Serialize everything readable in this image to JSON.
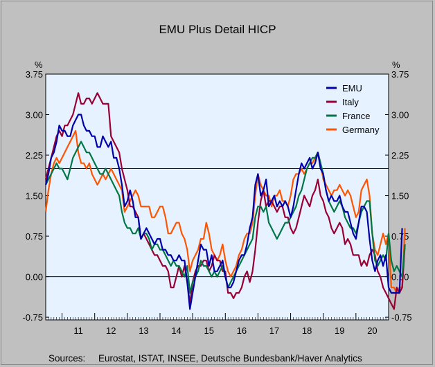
{
  "chart_data": {
    "type": "line",
    "title": "EMU Plus Detail HICP",
    "ylabel_left": "%",
    "ylabel_right": "%",
    "ylim": [
      -0.8,
      3.75
    ],
    "y_ticks": [
      3.75,
      3.0,
      2.25,
      1.5,
      0.75,
      0.0,
      -0.75
    ],
    "y_tick_labels": [
      "3.75",
      "3.00",
      "2.25",
      "1.50",
      "0.75",
      "0.00",
      "-0.75"
    ],
    "x_range": [
      "2010-07",
      "2020-12"
    ],
    "x_ticks": [
      "11",
      "12",
      "13",
      "14",
      "15",
      "16",
      "17",
      "18",
      "19",
      "20"
    ],
    "reference_line": 2.0,
    "zero_line": 0.0,
    "legend_position": "top-right",
    "series": [
      {
        "name": "EMU",
        "color": "#0000aa",
        "values": [
          1.7,
          1.9,
          2.2,
          2.3,
          2.5,
          2.8,
          2.7,
          2.7,
          2.6,
          2.6,
          2.8,
          2.9,
          3.0,
          3.0,
          2.8,
          2.7,
          2.7,
          2.6,
          2.6,
          2.4,
          2.4,
          2.6,
          2.5,
          2.4,
          2.5,
          2.2,
          2.2,
          2.0,
          1.7,
          1.3,
          1.4,
          1.6,
          1.4,
          1.1,
          1.1,
          0.7,
          0.8,
          0.9,
          0.8,
          0.7,
          0.6,
          0.7,
          0.7,
          0.5,
          0.5,
          0.4,
          0.4,
          0.3,
          0.3,
          0.4,
          0.3,
          0.3,
          -0.1,
          -0.6,
          -0.3,
          0.0,
          0.3,
          0.6,
          0.5,
          0.5,
          0.2,
          0.4,
          0.1,
          0.1,
          0.2,
          0.3,
          0.0,
          -0.2,
          -0.2,
          -0.1,
          0.1,
          0.3,
          0.4,
          0.4,
          0.6,
          0.9,
          1.1,
          1.7,
          1.9,
          1.5,
          1.6,
          1.8,
          1.3,
          1.4,
          1.5,
          1.3,
          1.4,
          1.3,
          1.4,
          1.3,
          1.1,
          1.3,
          1.6,
          1.9,
          2.1,
          2.0,
          2.1,
          2.2,
          2.0,
          2.1,
          2.3,
          2.0,
          1.9,
          1.6,
          1.4,
          1.5,
          1.4,
          1.4,
          1.5,
          1.3,
          1.2,
          1.2,
          1.0,
          0.8,
          0.7,
          1.0,
          1.3,
          1.3,
          1.2,
          0.7,
          0.3,
          0.1,
          0.3,
          0.4,
          0.2,
          0.4,
          -0.2,
          -0.3,
          -0.3,
          -0.3,
          -0.3,
          0.9
        ]
      },
      {
        "name": "Italy",
        "color": "#990033",
        "values": [
          1.8,
          2.0,
          2.2,
          2.4,
          2.6,
          2.7,
          2.6,
          2.8,
          2.8,
          2.9,
          3.0,
          3.2,
          3.4,
          3.2,
          3.2,
          3.3,
          3.3,
          3.2,
          3.3,
          3.4,
          3.3,
          3.2,
          3.2,
          3.2,
          2.6,
          2.5,
          2.4,
          2.3,
          2.0,
          1.8,
          1.6,
          1.3,
          1.3,
          1.2,
          1.1,
          0.7,
          0.8,
          0.7,
          0.6,
          0.5,
          0.4,
          0.4,
          0.3,
          0.2,
          0.2,
          0.1,
          -0.2,
          -0.2,
          0.0,
          0.2,
          0.0,
          0.2,
          -0.1,
          -0.5,
          -0.1,
          0.1,
          0.2,
          0.2,
          0.3,
          0.3,
          0.1,
          0.2,
          0.4,
          0.3,
          0.3,
          0.1,
          0.1,
          -0.3,
          -0.3,
          -0.4,
          -0.3,
          -0.3,
          -0.2,
          0.0,
          0.1,
          -0.1,
          0.1,
          0.5,
          1.0,
          1.4,
          1.6,
          1.3,
          1.4,
          1.4,
          1.3,
          1.2,
          1.3,
          1.3,
          1.1,
          1.1,
          0.9,
          0.8,
          0.9,
          1.1,
          1.3,
          1.5,
          1.4,
          1.3,
          1.5,
          1.6,
          1.8,
          1.5,
          1.4,
          1.2,
          1.1,
          0.9,
          0.8,
          0.9,
          1.0,
          0.9,
          0.6,
          0.7,
          0.6,
          0.4,
          0.4,
          0.4,
          0.2,
          0.3,
          0.2,
          0.4,
          0.5,
          0.4,
          0.1,
          0.0,
          -0.2,
          -0.3,
          -0.4,
          -0.5,
          -0.6,
          -0.2,
          -0.3,
          -0.2,
          0.6
        ]
      },
      {
        "name": "France",
        "color": "#007744",
        "values": [
          1.7,
          1.8,
          1.9,
          2.0,
          2.1,
          2.0,
          2.0,
          1.9,
          1.8,
          2.0,
          2.2,
          2.3,
          2.4,
          2.5,
          2.4,
          2.3,
          2.3,
          2.2,
          2.1,
          2.0,
          1.9,
          1.9,
          2.0,
          1.9,
          1.8,
          1.7,
          1.6,
          1.5,
          1.2,
          1.0,
          0.9,
          0.9,
          0.8,
          0.8,
          0.9,
          0.7,
          0.8,
          0.8,
          0.7,
          0.5,
          0.6,
          0.6,
          0.5,
          0.5,
          0.4,
          0.3,
          0.2,
          0.3,
          0.2,
          0.2,
          0.1,
          0.0,
          0.2,
          -0.3,
          -0.1,
          0.0,
          0.1,
          0.3,
          0.2,
          0.2,
          0.1,
          0.0,
          0.1,
          0.0,
          0.1,
          0.2,
          0.0,
          -0.2,
          -0.1,
          0.0,
          0.1,
          0.2,
          0.3,
          0.4,
          0.5,
          0.6,
          0.7,
          1.1,
          1.3,
          1.3,
          1.2,
          1.3,
          1.0,
          0.9,
          0.8,
          0.7,
          0.8,
          0.9,
          1.0,
          1.0,
          1.1,
          1.2,
          1.3,
          1.5,
          1.6,
          1.8,
          2.0,
          2.1,
          2.2,
          2.2,
          2.3,
          2.1,
          1.9,
          1.6,
          1.4,
          1.3,
          1.2,
          1.3,
          1.4,
          1.3,
          1.1,
          1.0,
          0.9,
          0.9,
          0.8,
          1.0,
          1.2,
          1.3,
          1.4,
          1.4,
          0.8,
          0.3,
          0.2,
          0.3,
          0.4,
          0.3,
          0.8,
          0.3,
          0.1,
          0.2,
          0.1,
          0.0,
          0.6
        ]
      },
      {
        "name": "Germany",
        "color": "#ff5500",
        "values": [
          1.2,
          1.6,
          1.9,
          2.1,
          2.2,
          2.1,
          2.2,
          2.3,
          2.4,
          2.5,
          2.6,
          2.7,
          2.3,
          2.1,
          2.1,
          2.0,
          2.1,
          1.9,
          1.8,
          1.7,
          1.8,
          1.9,
          1.8,
          1.9,
          2.0,
          1.9,
          1.8,
          1.7,
          1.6,
          1.2,
          1.3,
          1.4,
          1.5,
          1.6,
          1.5,
          1.3,
          1.3,
          1.3,
          1.3,
          1.1,
          1.1,
          1.2,
          1.3,
          1.3,
          1.1,
          0.8,
          0.8,
          0.9,
          1.0,
          1.0,
          0.8,
          0.7,
          0.5,
          0.1,
          0.3,
          0.4,
          0.5,
          0.7,
          0.7,
          1.0,
          0.8,
          0.5,
          0.4,
          0.3,
          0.4,
          0.6,
          0.3,
          0.1,
          0.0,
          0.1,
          0.2,
          0.4,
          0.5,
          0.7,
          0.8,
          0.8,
          1.0,
          1.5,
          1.9,
          1.7,
          1.6,
          1.5,
          1.5,
          1.3,
          1.5,
          1.5,
          1.6,
          1.4,
          1.4,
          1.3,
          1.5,
          1.8,
          1.9,
          1.9,
          2.0,
          1.9,
          2.0,
          2.1,
          2.1,
          2.2,
          2.3,
          2.1,
          1.8,
          1.7,
          1.6,
          1.5,
          1.6,
          1.6,
          1.7,
          1.6,
          1.5,
          1.6,
          1.5,
          1.3,
          1.1,
          1.2,
          1.6,
          1.7,
          1.8,
          1.5,
          0.8,
          0.5,
          0.4,
          0.6,
          0.8,
          0.6,
          0.8,
          -0.2,
          -0.2,
          -0.3,
          -0.2,
          -0.2,
          0.9
        ]
      }
    ],
    "source": "Sources:     Eurostat, ISTAT, INSEE, Deutsche Bundesbank/Haver Analytics"
  }
}
